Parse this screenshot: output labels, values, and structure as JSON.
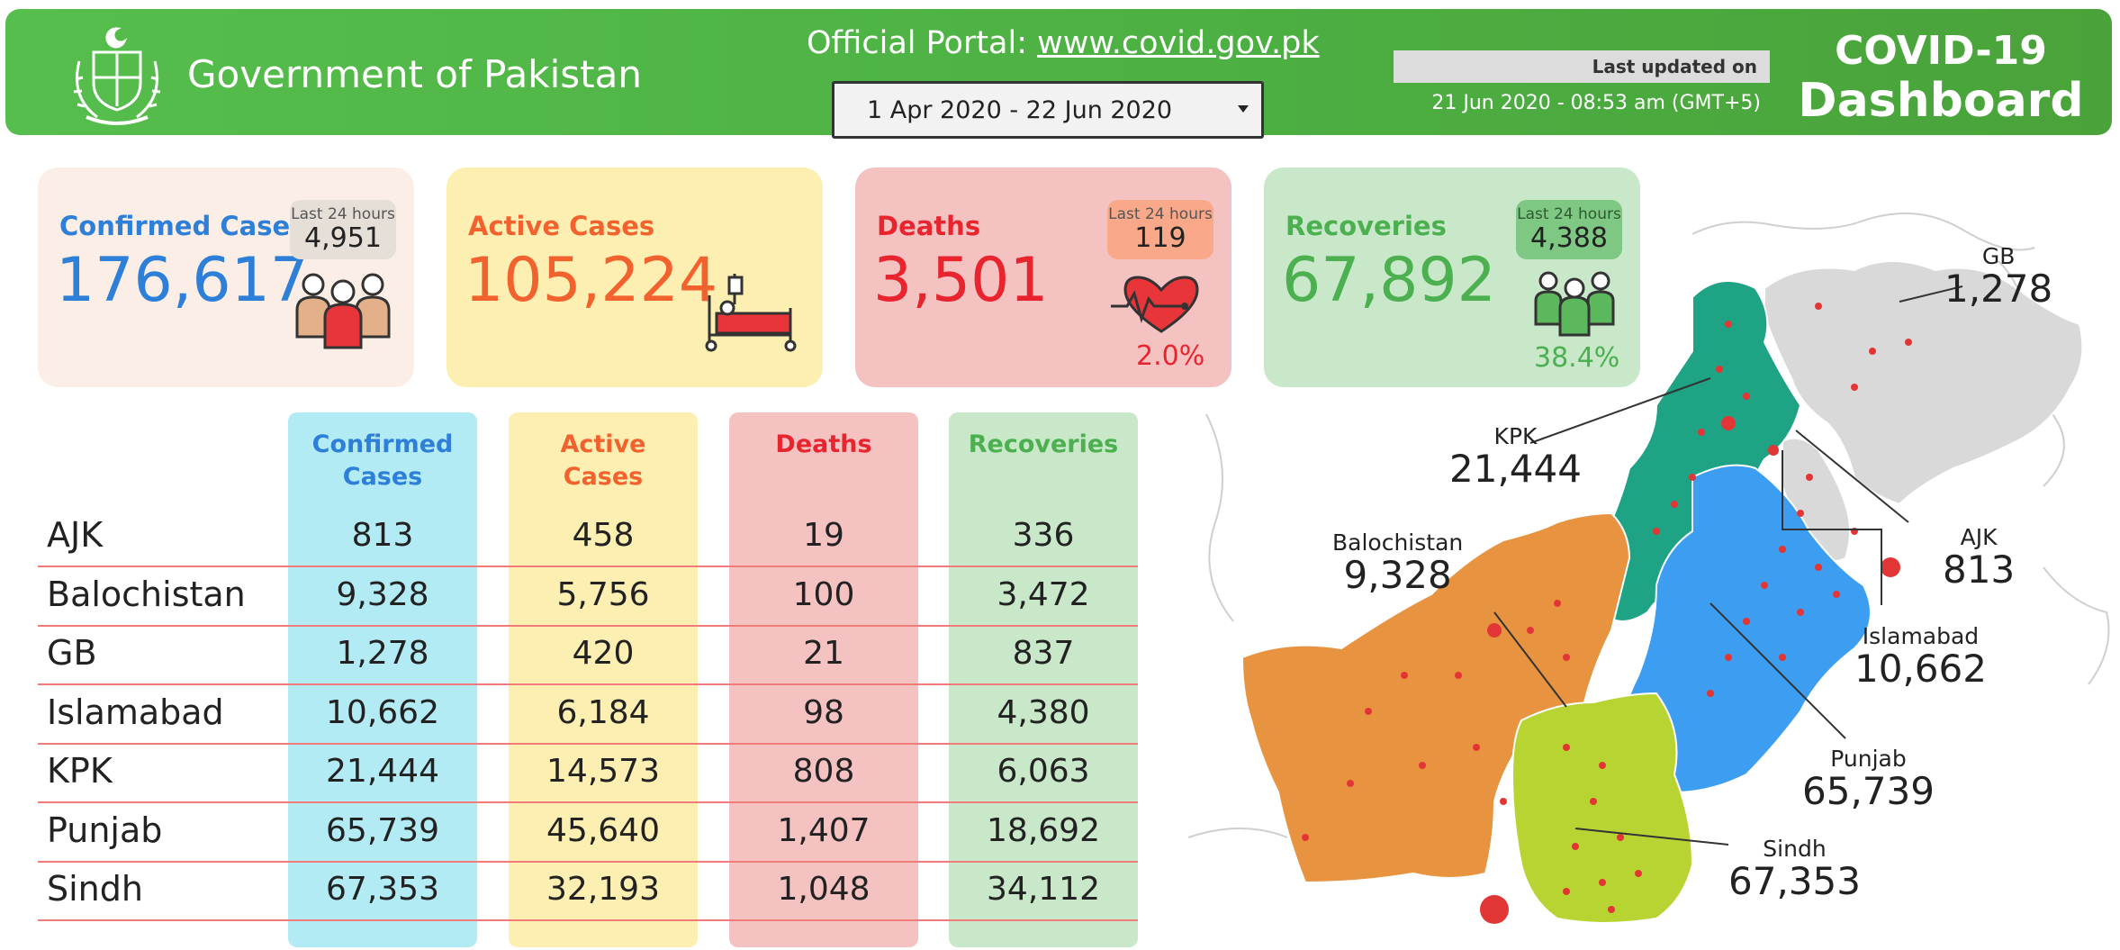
{
  "header": {
    "title": "Government of Pakistan",
    "portal_prefix": "Official Portal: ",
    "portal_link": "www.covid.gov.pk",
    "date_range": "1 Apr 2020 - 22 Jun 2020",
    "last_updated_label": "Last updated on",
    "last_updated_value": "21 Jun 2020 - 08:53 am (GMT+5)",
    "dashboard_line1": "COVID-19",
    "dashboard_line2": "Dashboard"
  },
  "cards": {
    "confirmed": {
      "title": "Confirmed Cases",
      "value": "176,617",
      "badge_label": "Last 24 hours",
      "badge_value": "4,951"
    },
    "active": {
      "title": "Active Cases",
      "value": "105,224"
    },
    "deaths": {
      "title": "Deaths",
      "value": "3,501",
      "badge_label": "Last 24 hours",
      "badge_value": "119",
      "rate": "2.0%"
    },
    "recoveries": {
      "title": "Recoveries",
      "value": "67,892",
      "badge_label": "Last 24 hours",
      "badge_value": "4,388",
      "rate": "38.4%"
    }
  },
  "table": {
    "headers": {
      "confirmed": [
        "Confirmed",
        "Cases"
      ],
      "active": [
        "Active",
        "Cases"
      ],
      "deaths": "Deaths",
      "recoveries": "Recoveries"
    },
    "rows": [
      {
        "region": "AJK",
        "confirmed": "813",
        "active": "458",
        "deaths": "19",
        "recoveries": "336"
      },
      {
        "region": "Balochistan",
        "confirmed": "9,328",
        "active": "5,756",
        "deaths": "100",
        "recoveries": "3,472"
      },
      {
        "region": "GB",
        "confirmed": "1,278",
        "active": "420",
        "deaths": "21",
        "recoveries": "837"
      },
      {
        "region": "Islamabad",
        "confirmed": "10,662",
        "active": "6,184",
        "deaths": "98",
        "recoveries": "4,380"
      },
      {
        "region": "KPK",
        "confirmed": "21,444",
        "active": "14,573",
        "deaths": "808",
        "recoveries": "6,063"
      },
      {
        "region": "Punjab",
        "confirmed": "65,739",
        "active": "45,640",
        "deaths": "1,407",
        "recoveries": "18,692"
      },
      {
        "region": "Sindh",
        "confirmed": "67,353",
        "active": "32,193",
        "deaths": "1,048",
        "recoveries": "34,112"
      }
    ]
  },
  "map": {
    "labels": {
      "gb": {
        "name": "GB",
        "value": "1,278"
      },
      "kpk": {
        "name": "KPK",
        "value": "21,444"
      },
      "ajk": {
        "name": "AJK",
        "value": "813"
      },
      "balochistan": {
        "name": "Balochistan",
        "value": "9,328"
      },
      "islamabad": {
        "name": "Islamabad",
        "value": "10,662"
      },
      "punjab": {
        "name": "Punjab",
        "value": "65,739"
      },
      "sindh": {
        "name": "Sindh",
        "value": "67,353"
      }
    },
    "colors": {
      "gb_ajk": "#d9d9d9",
      "kpk": "#1fa385",
      "punjab": "#3d9df0",
      "balochistan": "#e8933f",
      "sindh": "#b8d433",
      "dots": "#e23636"
    }
  },
  "colors": {
    "header_green": "#4caf42",
    "confirmed": "#2d7fd8",
    "active": "#f2622e",
    "deaths": "#e8252f",
    "recoveries": "#4caf50"
  }
}
